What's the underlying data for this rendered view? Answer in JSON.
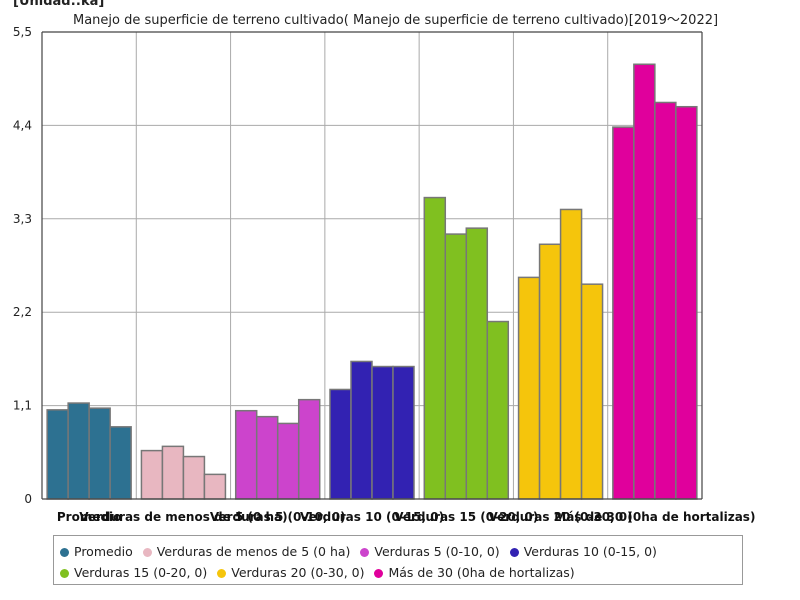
{
  "unit_label": "[Unidad::ka]",
  "chart_data": {
    "type": "bar",
    "title": "Manejo de superficie de terreno cultivado( Manejo de superficie de terreno cultivado)[2019～2022]",
    "ylabel": "",
    "xlabel": "",
    "ylim": [
      0,
      5.5
    ],
    "yticks": [
      "0",
      "1,1",
      "2,2",
      "3,3",
      "4,4",
      "5,5"
    ],
    "ytick_values": [
      0,
      1.1,
      2.2,
      3.3,
      4.4,
      5.5
    ],
    "grid": true,
    "legend_position": "bottom",
    "categories": [
      "Promedio",
      "Verduras de menos de 5 (0 ha)",
      "Verduras 5 (0-10, 0)",
      "Verduras 10 (0-15, 0)",
      "Verduras 15 (0-20, 0)",
      "Verduras 20 (0-30, 0)",
      "Más de 30 (0ha de hortalizas)"
    ],
    "groups": [
      {
        "name": "Promedio",
        "color": "#2d7191",
        "values": [
          1.05,
          1.13,
          1.07,
          0.85
        ]
      },
      {
        "name": "Verduras de menos de 5 (0 ha)",
        "color": "#e8b7c1",
        "values": [
          0.57,
          0.62,
          0.5,
          0.29
        ]
      },
      {
        "name": "Verduras 5 (0-10, 0)",
        "color": "#cc44cc",
        "values": [
          1.04,
          0.97,
          0.89,
          1.17
        ]
      },
      {
        "name": "Verduras 10 (0-15, 0)",
        "color": "#3222b2",
        "values": [
          1.29,
          1.62,
          1.56,
          1.56
        ]
      },
      {
        "name": "Verduras 15 (0-20, 0)",
        "color": "#80c020",
        "values": [
          3.55,
          3.12,
          3.19,
          2.09
        ]
      },
      {
        "name": "Verduras 20 (0-30, 0)",
        "color": "#f5c50c",
        "values": [
          2.61,
          3.0,
          3.41,
          2.53
        ]
      },
      {
        "name": "Más de 30 (0ha de hortalizas)",
        "color": "#e0009c",
        "values": [
          4.38,
          5.12,
          4.67,
          4.62
        ]
      }
    ]
  }
}
